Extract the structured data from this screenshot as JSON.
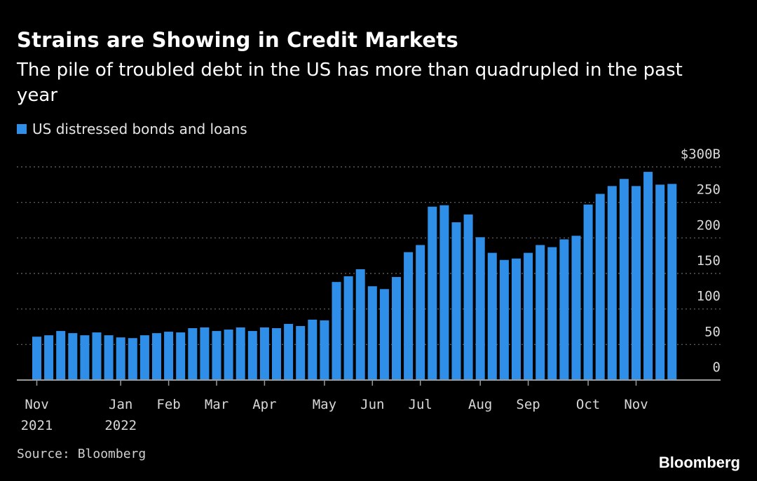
{
  "title": "Strains are Showing in Credit Markets",
  "subtitle": "The pile of troubled debt in the US has more than quadrupled in the past year",
  "legend": {
    "label": "US distressed bonds and loans",
    "color": "#2f8fe8"
  },
  "source": "Source: Bloomberg",
  "brand": "Bloomberg",
  "chart_data": {
    "type": "bar",
    "series": [
      {
        "name": "US distressed bonds and loans",
        "values": [
          61,
          63,
          69,
          66,
          63,
          67,
          63,
          60,
          59,
          63,
          66,
          68,
          67,
          73,
          74,
          69,
          71,
          74,
          69,
          74,
          73,
          79,
          76,
          85,
          84,
          138,
          146,
          156,
          132,
          128,
          145,
          180,
          190,
          244,
          246,
          222,
          233,
          201,
          179,
          169,
          171,
          179,
          190,
          187,
          198,
          203,
          247,
          262,
          273,
          283,
          273,
          293,
          275,
          276
        ]
      }
    ],
    "x_ticks": [
      {
        "index": 0,
        "label": "Nov",
        "sublabel": "2021"
      },
      {
        "index": 7,
        "label": "Jan",
        "sublabel": "2022"
      },
      {
        "index": 11,
        "label": "Feb",
        "sublabel": ""
      },
      {
        "index": 15,
        "label": "Mar",
        "sublabel": ""
      },
      {
        "index": 19,
        "label": "Apr",
        "sublabel": ""
      },
      {
        "index": 24,
        "label": "May",
        "sublabel": ""
      },
      {
        "index": 28,
        "label": "Jun",
        "sublabel": ""
      },
      {
        "index": 32,
        "label": "Jul",
        "sublabel": ""
      },
      {
        "index": 37,
        "label": "Aug",
        "sublabel": ""
      },
      {
        "index": 41,
        "label": "Sep",
        "sublabel": ""
      },
      {
        "index": 46,
        "label": "Oct",
        "sublabel": ""
      },
      {
        "index": 50,
        "label": "Nov",
        "sublabel": ""
      }
    ],
    "y_ticks": [
      {
        "value": 0,
        "label": "0"
      },
      {
        "value": 50,
        "label": "50"
      },
      {
        "value": 100,
        "label": "100"
      },
      {
        "value": 150,
        "label": "150"
      },
      {
        "value": 200,
        "label": "200"
      },
      {
        "value": 250,
        "label": "250"
      },
      {
        "value": 300,
        "label": "$300B"
      }
    ],
    "ylim": [
      0,
      300
    ],
    "grid": true,
    "y_axis_side": "right",
    "bar_color": "#2f8fe8"
  }
}
